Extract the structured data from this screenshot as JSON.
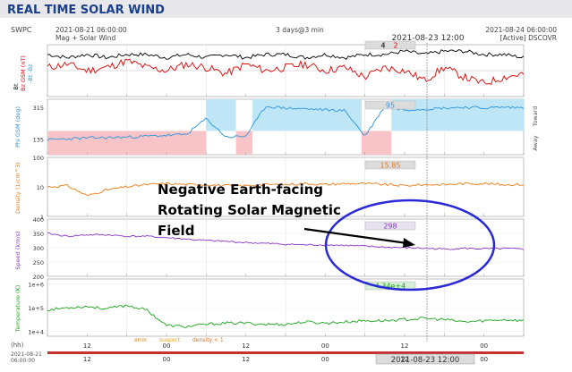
{
  "page": {
    "title": "REAL TIME SOLAR WIND",
    "source_label": "SWPC",
    "start_time": "2021-08-21 06:00:00",
    "subtitle": "Mag + Solar Wind",
    "span_label": "3 days@3 min",
    "cursor_time": "2021-08-23 12:00",
    "end_time": "2021-08-24 06:00:00",
    "status": "[Active] DSCOVR",
    "hh_label": "(hh)",
    "bottom_start_date": "2021-08-21",
    "bottom_start_clock": "06:00:00",
    "bottom_cursor_time": "2021-08-23 12:00",
    "legend_error": "error",
    "legend_suspect": "suspect",
    "legend_density": "density < 1",
    "hour_ticks": [
      "12",
      "00",
      "12",
      "00",
      "12",
      "00"
    ],
    "colors": {
      "title_bg": "#e8e8ec",
      "title_text": "#1a3f8a",
      "bt": "#000000",
      "bz": "#e00000",
      "phi": "#2c95dc",
      "phi_away": "#bfe6f7",
      "phi_toward": "#f8c4c8",
      "density": "#ee7a12",
      "speed": "#8a36c8",
      "temp": "#1aa51a",
      "ellipse": "#2a2ad8",
      "arrow": "#000000"
    }
  },
  "annotation": {
    "line1": "Negative Earth-facing",
    "line2": "Rotating Solar Magnetic",
    "line3": "Field"
  },
  "chart_data": [
    {
      "type": "line",
      "title": "Bt / Bz GSM",
      "ylabel_bt": "Bt",
      "ylabel_bz": "Bz GSM (nT)",
      "ylabel_extra": "-Bt  -Bz",
      "readout_bt": "4",
      "readout_bz": "2",
      "ylim": [
        -8,
        8
      ],
      "x": [
        0,
        3,
        6,
        9,
        12,
        15,
        18,
        21,
        24,
        27,
        30,
        33,
        36,
        39,
        42,
        45,
        48,
        51,
        54,
        57,
        60,
        63,
        66,
        69,
        72
      ],
      "series": [
        {
          "name": "Bt",
          "values": [
            5,
            4,
            5,
            4,
            5,
            5,
            4,
            5,
            4,
            5,
            4,
            5,
            5,
            4,
            5,
            4,
            5,
            5,
            6,
            5,
            6,
            6,
            5,
            5,
            4
          ]
        },
        {
          "name": "Bz",
          "values": [
            1,
            2,
            0,
            1,
            3,
            1,
            0,
            2,
            1,
            -1,
            2,
            0,
            1,
            2,
            0,
            1,
            -2,
            1,
            0,
            -3,
            1,
            -2,
            -4,
            -2,
            -1
          ]
        }
      ]
    },
    {
      "type": "line",
      "title": "Phi GSM",
      "ylabel": "Phi GSM (deg)",
      "side_toward": "Toward",
      "side_away": "Away",
      "readout": "95",
      "yticks": [
        "315",
        "135"
      ],
      "ylim": [
        45,
        360
      ],
      "x": [
        0,
        3,
        6,
        9,
        12,
        15,
        18,
        21,
        24,
        27,
        30,
        33,
        36,
        39,
        42,
        45,
        48,
        51,
        54,
        57,
        60,
        63,
        66,
        69,
        72
      ],
      "values": [
        130,
        135,
        140,
        142,
        145,
        150,
        155,
        160,
        250,
        145,
        150,
        320,
        310,
        305,
        300,
        295,
        150,
        320,
        300,
        305,
        310,
        315,
        310,
        315,
        312
      ],
      "toward_ranges": [
        [
          0,
          24
        ],
        [
          28.5,
          31
        ],
        [
          47.5,
          52
        ]
      ],
      "away_ranges": [
        [
          24,
          28.5
        ],
        [
          31,
          47.5
        ],
        [
          52,
          72
        ]
      ]
    },
    {
      "type": "line",
      "title": "Density",
      "ylabel": "Density (1/cm^3)",
      "readout": "15.85",
      "yticks": [
        "100",
        "10",
        "1"
      ],
      "ylim": [
        0,
        2
      ],
      "x": [
        0,
        3,
        6,
        9,
        12,
        15,
        18,
        21,
        24,
        27,
        30,
        33,
        36,
        39,
        42,
        45,
        48,
        51,
        54,
        57,
        60,
        63,
        66,
        69,
        72
      ],
      "values": [
        10,
        11,
        5,
        8,
        10,
        12,
        13,
        12,
        12,
        11,
        11,
        12,
        12,
        13,
        12,
        13,
        13,
        12,
        11,
        12,
        12,
        13,
        13,
        12,
        12
      ]
    },
    {
      "type": "line",
      "title": "Speed",
      "ylabel": "Speed (km/s)",
      "readout": "298",
      "yticks": [
        "400",
        "350",
        "300",
        "250",
        "200"
      ],
      "ylim": [
        200,
        400
      ],
      "x": [
        0,
        3,
        6,
        9,
        12,
        15,
        18,
        21,
        24,
        27,
        30,
        33,
        36,
        39,
        42,
        45,
        48,
        51,
        54,
        57,
        60,
        63,
        66,
        69,
        72
      ],
      "values": [
        350,
        340,
        345,
        345,
        340,
        340,
        335,
        330,
        325,
        322,
        318,
        315,
        312,
        310,
        310,
        308,
        305,
        302,
        300,
        298,
        295,
        298,
        296,
        297,
        295
      ]
    },
    {
      "type": "line",
      "title": "Temperature",
      "ylabel": "Temperature (K)",
      "readout": "4.34e+4",
      "yticks": [
        "1e+6",
        "1e+5",
        "1e+4"
      ],
      "ylim": [
        3.8,
        6.2
      ],
      "x": [
        0,
        3,
        6,
        9,
        12,
        15,
        18,
        21,
        24,
        27,
        30,
        33,
        36,
        39,
        42,
        45,
        48,
        51,
        54,
        57,
        60,
        63,
        66,
        69,
        72
      ],
      "values": [
        4.9,
        5.0,
        5.05,
        4.95,
        5.1,
        4.9,
        4.25,
        4.2,
        4.3,
        4.35,
        4.35,
        4.3,
        4.3,
        4.4,
        4.35,
        4.4,
        4.45,
        4.45,
        4.5,
        4.55,
        4.5,
        4.4,
        4.45,
        4.5,
        4.45
      ]
    }
  ]
}
